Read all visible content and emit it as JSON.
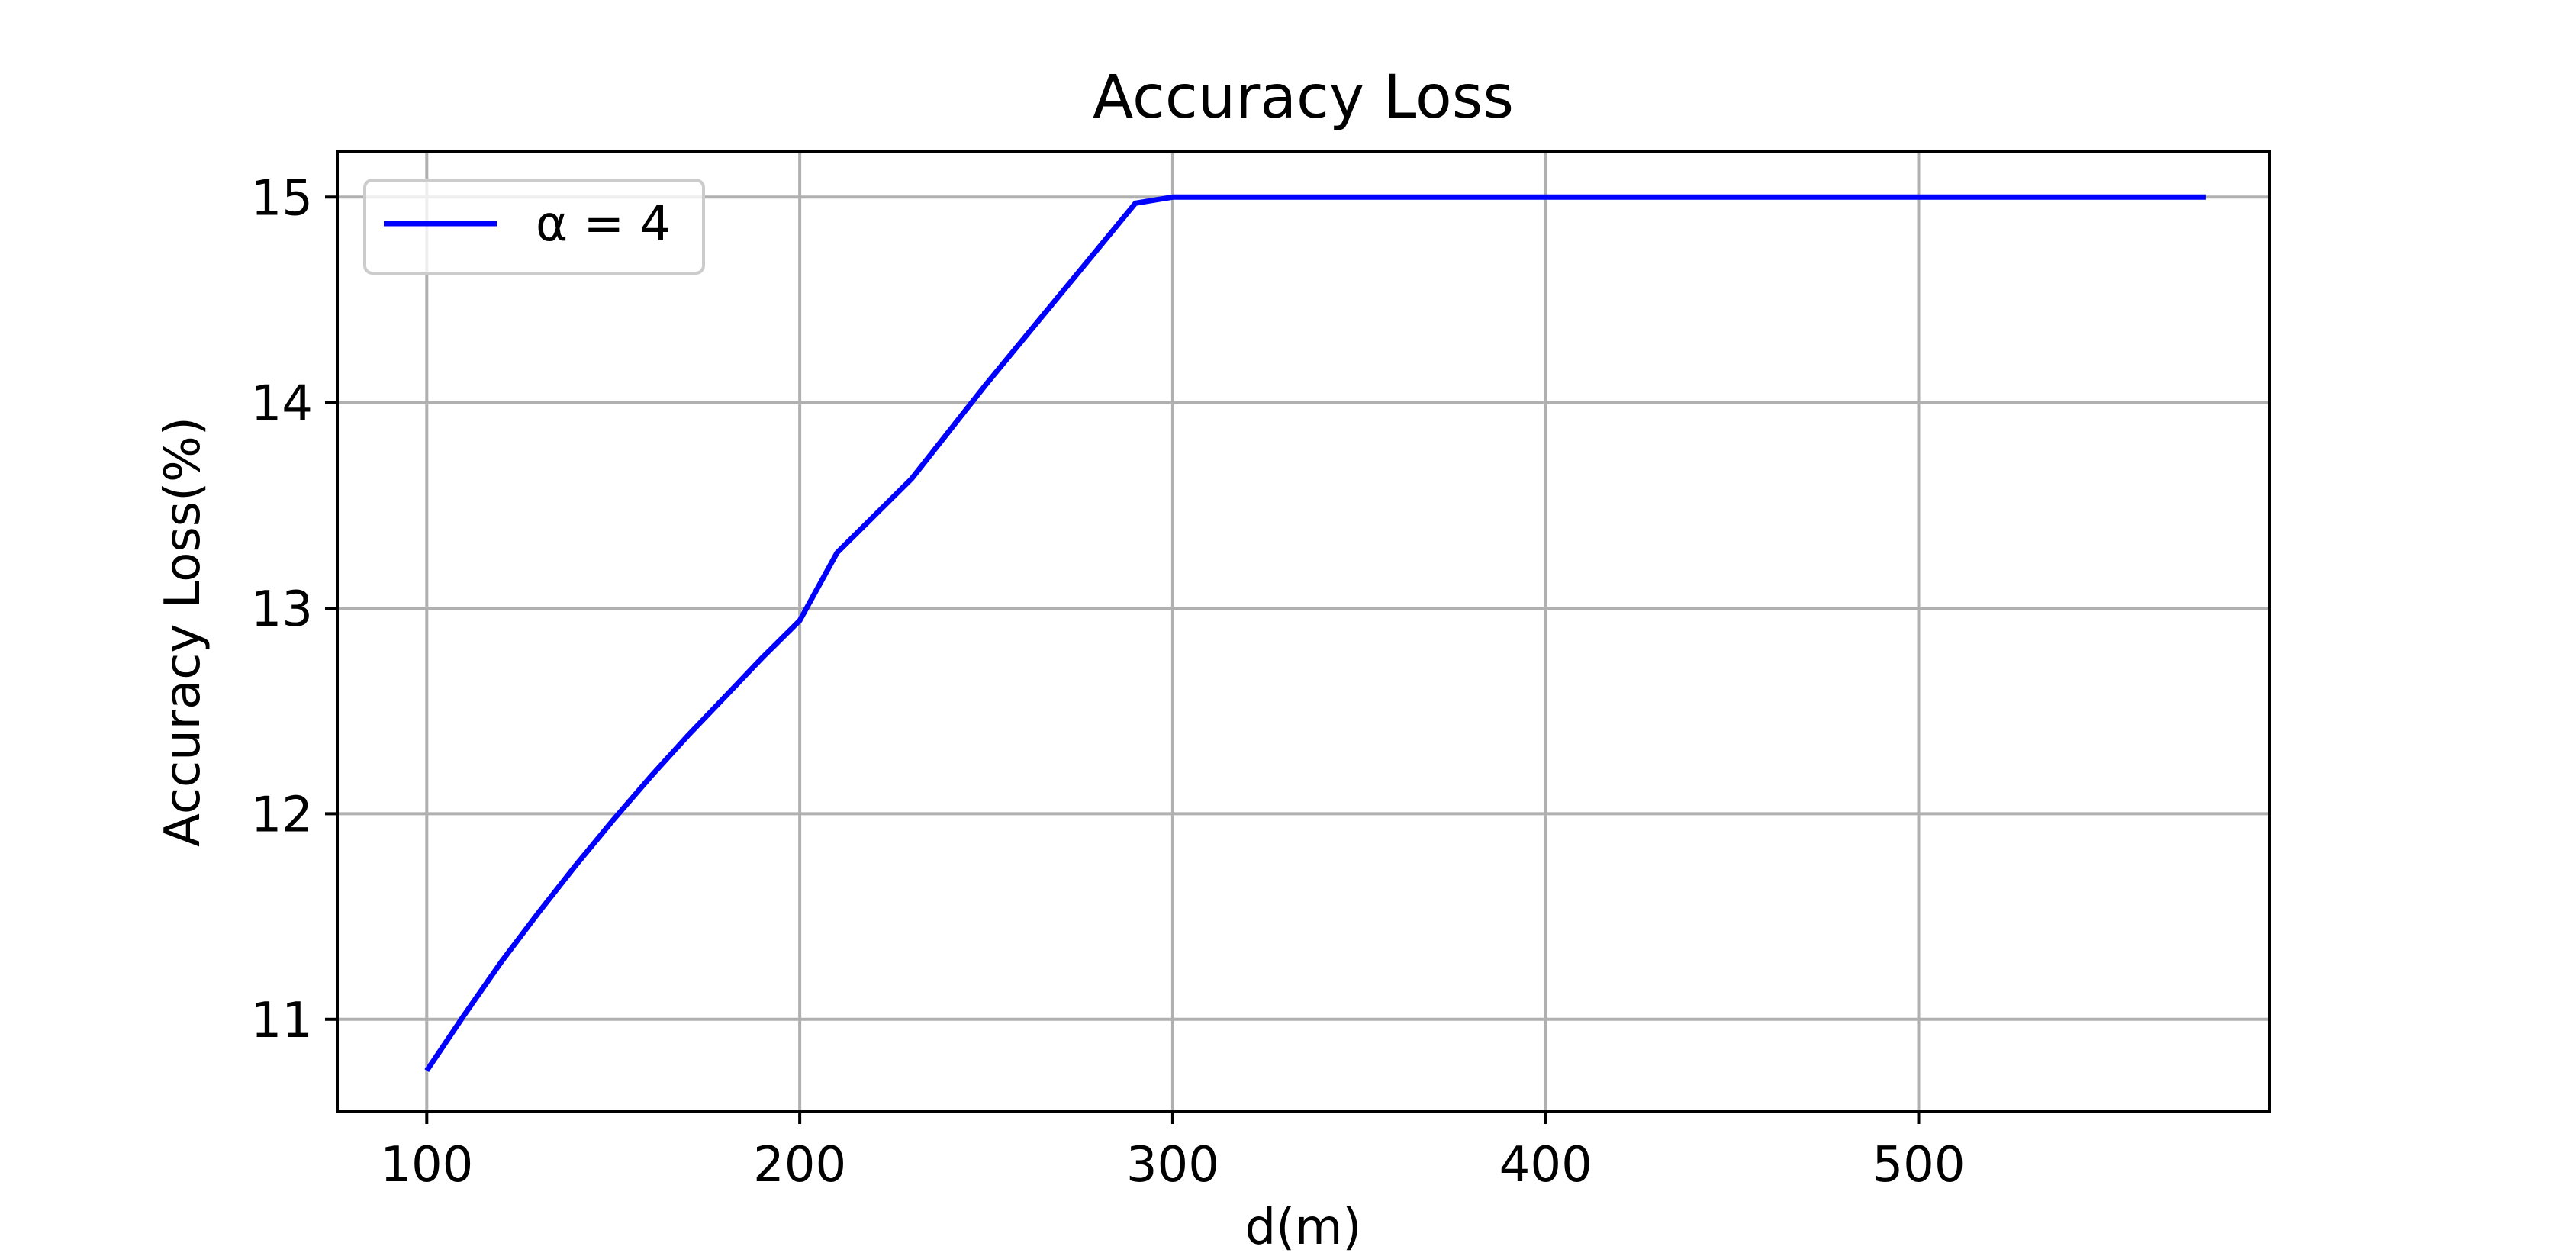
{
  "chart_data": {
    "type": "line",
    "title": "Accuracy Loss",
    "xlabel": "d(m)",
    "ylabel": "Accuracy Loss(%)",
    "xlim": [
      76,
      594
    ],
    "ylim": [
      10.55,
      15.22
    ],
    "xticks": [
      100,
      200,
      300,
      400,
      500
    ],
    "yticks": [
      11,
      12,
      13,
      14,
      15
    ],
    "grid": true,
    "legend_position": "top-left",
    "series": [
      {
        "name": "α = 4",
        "color": "#0000ff",
        "x": [
          100,
          110,
          120,
          130,
          140,
          150,
          160,
          170,
          180,
          190,
          200,
          210,
          220,
          230,
          240,
          250,
          260,
          270,
          280,
          290,
          300,
          350,
          400,
          450,
          500,
          550,
          577
        ],
        "y": [
          10.75,
          11.02,
          11.28,
          11.52,
          11.75,
          11.97,
          12.18,
          12.38,
          12.57,
          12.76,
          12.94,
          13.27,
          13.45,
          13.63,
          13.86,
          14.09,
          14.31,
          14.53,
          14.75,
          14.97,
          15.0,
          15.0,
          15.0,
          15.0,
          15.0,
          15.0,
          15.0
        ]
      }
    ]
  }
}
